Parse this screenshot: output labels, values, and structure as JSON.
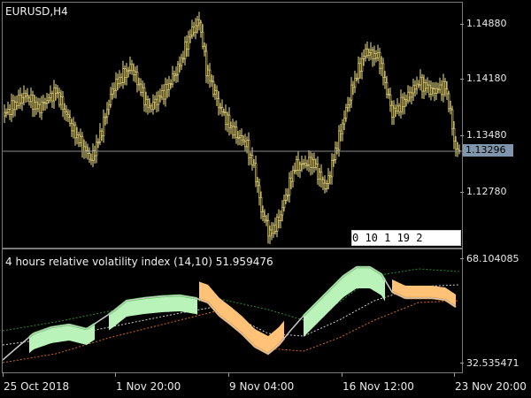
{
  "symbol_title": "EURUSD,H4",
  "price_axis": [
    "1.14880",
    "1.14180",
    "1.13480",
    "1.12780"
  ],
  "current_price": "1.13296",
  "indicator": {
    "title": "4 hours relative volatility index (14,10) 51.959476",
    "axis_top": "68.104085",
    "axis_bottom": "32.535471"
  },
  "time_axis": [
    "25 Oct 2018",
    "1 Nov 20:00",
    "9 Nov 04:00",
    "16 Nov 12:00",
    "23 Nov 20:00"
  ],
  "mini_box_text": "0 10  1 19 2",
  "colors": {
    "candle": "#f4e38e",
    "bid_line": "#8c8c8c",
    "fill_up": "#b9f3b9",
    "fill_down": "#ffc277",
    "line_up": "#3fcf3f",
    "line_down": "#f28a14",
    "rvi_line": "#c8c8c8",
    "band_upper": "#2e8b2e",
    "band_mid": "#cfcfcf",
    "band_lower": "#d2691e"
  }
}
